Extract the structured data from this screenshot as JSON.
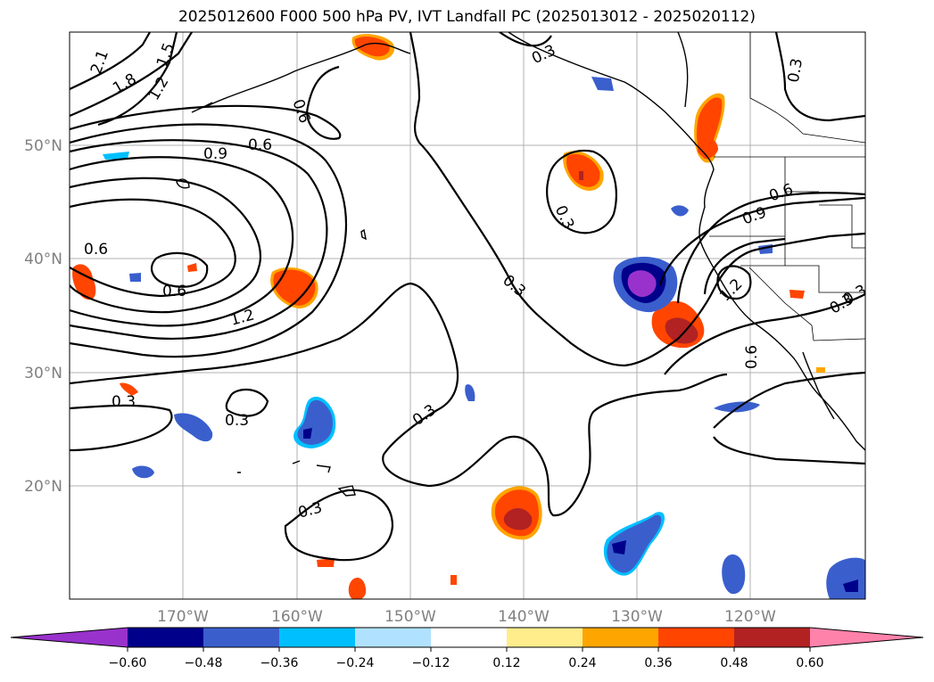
{
  "title": "2025012600 F000 500 hPa PV, IVT Landfall PC (2025013012 - 2025020112)",
  "lat_labels": [
    "50°N",
    "40°N",
    "30°N",
    "20°N"
  ],
  "lon_labels": [
    "170°W",
    "160°W",
    "150°W",
    "140°W",
    "130°W",
    "120°W"
  ],
  "contour_labels": [
    "2.1",
    "1.8",
    "1.5",
    "1.2",
    "0.6",
    "0.9",
    "0.6",
    "0.6",
    "0.6",
    "1.2",
    "0.3",
    "0.3",
    "0.3",
    "0.3",
    "0.3",
    "0.3",
    "0.3",
    "0.3",
    "0.6",
    "0.9",
    "1.2",
    "0.6",
    "0.3",
    "0.3"
  ],
  "colorbar": {
    "ticks": [
      "−0.60",
      "−0.48",
      "−0.36",
      "−0.24",
      "−0.12",
      "0.12",
      "0.24",
      "0.36",
      "0.48",
      "0.60"
    ],
    "colors": [
      "#9932cc",
      "#00008b",
      "#3a5fcd",
      "#00bfff",
      "#b0e2ff",
      "#ffffff",
      "#ffec8b",
      "#ffa500",
      "#ff4500",
      "#b22222",
      "#ff82ab"
    ]
  }
}
